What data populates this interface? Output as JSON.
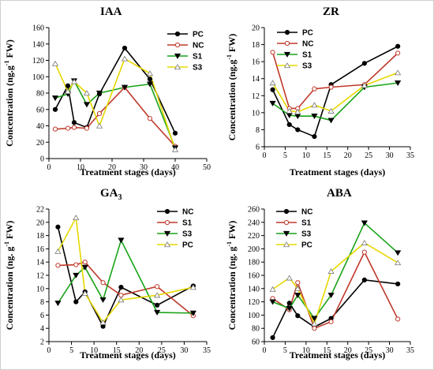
{
  "chart_data": [
    {
      "type": "line",
      "title": "IAA",
      "title_sub": "",
      "xlabel": "Treatment stages (days)",
      "ylabel_parts": [
        "Concentration (ng.g",
        "-1",
        " FW)"
      ],
      "xlim": [
        0,
        50
      ],
      "xticks": [
        0,
        10,
        20,
        30,
        40,
        50
      ],
      "ylim": [
        0,
        160
      ],
      "yticks": [
        0,
        20,
        40,
        60,
        80,
        100,
        120,
        140,
        160
      ],
      "x": [
        2,
        6,
        8,
        12,
        16,
        24,
        32,
        40
      ],
      "legend_position": "top-right",
      "series": [
        {
          "name": "PC",
          "color": "#000000",
          "marker": "circle",
          "fill": "#000000",
          "values": [
            60,
            89,
            44,
            38,
            79,
            135,
            97,
            31
          ]
        },
        {
          "name": "NC",
          "color": "#c0392b",
          "marker": "circle",
          "fill": "#ffffff",
          "values": [
            36,
            37,
            38,
            37,
            55,
            87,
            49,
            15
          ]
        },
        {
          "name": "S1",
          "color": "#19a319",
          "marker": "triangle-down",
          "fill": "#000000",
          "values": [
            74,
            79,
            95,
            66,
            80,
            87,
            91,
            13
          ]
        },
        {
          "name": "S3",
          "color": "#e6d800",
          "marker": "triangle-up",
          "fill": "#ffffff",
          "values": [
            116,
            82,
            94,
            80,
            40,
            122,
            104,
            11
          ]
        }
      ]
    },
    {
      "type": "line",
      "title": "ZR",
      "title_sub": "",
      "xlabel": "Treatment stages (days)",
      "ylabel_parts": [
        "Concentration (ng.g",
        "-1",
        " FW)"
      ],
      "xlim": [
        0,
        35
      ],
      "xticks": [
        0,
        5,
        10,
        15,
        20,
        25,
        30,
        35
      ],
      "ylim": [
        6,
        20
      ],
      "yticks": [
        6,
        8,
        10,
        12,
        14,
        16,
        18,
        20
      ],
      "x": [
        2,
        6,
        8,
        12,
        16,
        24,
        32
      ],
      "legend_position": "top-right",
      "series": [
        {
          "name": "PC",
          "color": "#000000",
          "marker": "circle",
          "fill": "#000000",
          "values": [
            12.7,
            8.6,
            8.0,
            7.2,
            13.3,
            15.8,
            17.8
          ]
        },
        {
          "name": "NC",
          "color": "#c0392b",
          "marker": "circle",
          "fill": "#ffffff",
          "values": [
            17.1,
            10.5,
            10.5,
            12.8,
            13.0,
            13.3,
            17.0
          ]
        },
        {
          "name": "S1",
          "color": "#19a319",
          "marker": "triangle-down",
          "fill": "#000000",
          "values": [
            11.1,
            9.7,
            9.6,
            9.6,
            9.1,
            13.0,
            13.5
          ]
        },
        {
          "name": "S3",
          "color": "#e6d800",
          "marker": "triangle-up",
          "fill": "#ffffff",
          "values": [
            13.5,
            10.2,
            10.1,
            10.9,
            10.2,
            13.2,
            14.7
          ]
        }
      ]
    },
    {
      "type": "line",
      "title": "GA",
      "title_sub": "3",
      "xlabel": "Treatment stages (days)",
      "ylabel_parts": [
        "Concentration (ng. g",
        "-1",
        " FW)"
      ],
      "xlim": [
        0,
        35
      ],
      "xticks": [
        0,
        5,
        10,
        15,
        20,
        25,
        30,
        35
      ],
      "ylim": [
        2,
        22
      ],
      "yticks": [
        2,
        4,
        6,
        8,
        10,
        12,
        14,
        16,
        18,
        20,
        22
      ],
      "x": [
        2,
        6,
        8,
        12,
        16,
        24,
        32
      ],
      "legend_position": "top-right",
      "series": [
        {
          "name": "NC",
          "color": "#000000",
          "marker": "circle",
          "fill": "#000000",
          "values": [
            19.3,
            8.0,
            9.5,
            4.3,
            10.2,
            7.5,
            10.4
          ]
        },
        {
          "name": "S1",
          "color": "#c0392b",
          "marker": "circle",
          "fill": "#ffffff",
          "values": [
            13.5,
            13.6,
            14.0,
            10.9,
            9.0,
            10.3,
            5.9
          ]
        },
        {
          "name": "S3",
          "color": "#19a319",
          "marker": "triangle-down",
          "fill": "#000000",
          "values": [
            7.8,
            12.0,
            13.2,
            8.3,
            17.3,
            6.4,
            6.3
          ]
        },
        {
          "name": "PC",
          "color": "#e6d800",
          "marker": "triangle-up",
          "fill": "#ffffff",
          "values": [
            15.6,
            20.7,
            9.3,
            4.9,
            8.3,
            9.0,
            10.2
          ]
        }
      ]
    },
    {
      "type": "line",
      "title": "ABA",
      "title_sub": "",
      "xlabel": "Treatment stages (days)",
      "ylabel_parts": [
        "Concentration (ng. g",
        "-1",
        " FW)"
      ],
      "xlim": [
        0,
        35
      ],
      "xticks": [
        0,
        5,
        10,
        15,
        20,
        25,
        30,
        35
      ],
      "ylim": [
        60,
        260
      ],
      "yticks": [
        60,
        80,
        100,
        120,
        140,
        160,
        180,
        200,
        220,
        240,
        260
      ],
      "x": [
        2,
        6,
        8,
        12,
        16,
        24,
        32
      ],
      "legend_position": "top-left",
      "series": [
        {
          "name": "NC",
          "color": "#000000",
          "marker": "circle",
          "fill": "#000000",
          "values": [
            66,
            118,
            99,
            82,
            95,
            153,
            147
          ]
        },
        {
          "name": "S1",
          "color": "#c0392b",
          "marker": "circle",
          "fill": "#ffffff",
          "values": [
            125,
            108,
            149,
            80,
            90,
            195,
            94
          ]
        },
        {
          "name": "S3",
          "color": "#19a319",
          "marker": "triangle-down",
          "fill": "#000000",
          "values": [
            120,
            110,
            130,
            95,
            130,
            239,
            194
          ]
        },
        {
          "name": "PC",
          "color": "#e6d800",
          "marker": "triangle-up",
          "fill": "#ffffff",
          "values": [
            139,
            156,
            140,
            87,
            166,
            209,
            179
          ]
        }
      ]
    }
  ]
}
